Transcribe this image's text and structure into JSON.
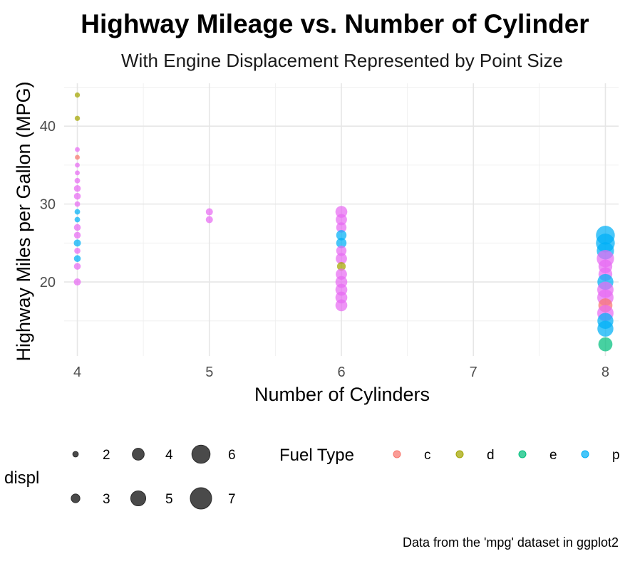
{
  "chart_data": {
    "type": "scatter",
    "title": "Highway Mileage vs. Number of Cylinder",
    "subtitle": "With Engine Displacement Represented by Point Size",
    "xlabel": "Number of Cylinders",
    "ylabel": "Highway Miles per Gallon (MPG)",
    "caption": "Data from the 'mpg' dataset in ggplot2",
    "xlim": [
      3.9,
      8.1
    ],
    "ylim": [
      10.5,
      45.5
    ],
    "x_ticks": [
      4,
      5,
      6,
      7,
      8
    ],
    "y_ticks": [
      20,
      30,
      40
    ],
    "grid": true,
    "colors": {
      "c": "#F8766D",
      "d": "#A3A500",
      "e": "#00BF7D",
      "p": "#00B0F6",
      "r": "#E76BF3"
    },
    "size_legend": {
      "title": "displ",
      "entries": [
        {
          "label": "2",
          "value": 2
        },
        {
          "label": "4",
          "value": 4
        },
        {
          "label": "6",
          "value": 6
        },
        {
          "label": "3",
          "value": 3
        },
        {
          "label": "5",
          "value": 5
        },
        {
          "label": "7",
          "value": 7
        }
      ]
    },
    "color_legend": {
      "title": "Fuel Type",
      "entries": [
        {
          "label": "c",
          "key": "c"
        },
        {
          "label": "d",
          "key": "d"
        },
        {
          "label": "e",
          "key": "e"
        },
        {
          "label": "p",
          "key": "p"
        }
      ]
    },
    "points": [
      {
        "x": 4,
        "y": 44,
        "displ": 1.9,
        "fl": "d"
      },
      {
        "x": 4,
        "y": 41,
        "displ": 1.9,
        "fl": "d"
      },
      {
        "x": 4,
        "y": 37,
        "displ": 1.8,
        "fl": "r"
      },
      {
        "x": 4,
        "y": 36,
        "displ": 1.8,
        "fl": "c"
      },
      {
        "x": 4,
        "y": 35,
        "displ": 1.8,
        "fl": "r"
      },
      {
        "x": 4,
        "y": 34,
        "displ": 1.8,
        "fl": "r"
      },
      {
        "x": 4,
        "y": 33,
        "displ": 2.0,
        "fl": "r"
      },
      {
        "x": 4,
        "y": 32,
        "displ": 2.4,
        "fl": "r"
      },
      {
        "x": 4,
        "y": 31,
        "displ": 2.4,
        "fl": "r"
      },
      {
        "x": 4,
        "y": 30,
        "displ": 2.0,
        "fl": "r"
      },
      {
        "x": 4,
        "y": 29,
        "displ": 2.0,
        "fl": "p"
      },
      {
        "x": 4,
        "y": 28,
        "displ": 2.0,
        "fl": "p"
      },
      {
        "x": 4,
        "y": 27,
        "displ": 2.4,
        "fl": "r"
      },
      {
        "x": 4,
        "y": 26,
        "displ": 2.4,
        "fl": "r"
      },
      {
        "x": 4,
        "y": 25,
        "displ": 2.5,
        "fl": "p"
      },
      {
        "x": 4,
        "y": 24,
        "displ": 2.2,
        "fl": "r"
      },
      {
        "x": 4,
        "y": 23,
        "displ": 2.4,
        "fl": "p"
      },
      {
        "x": 4,
        "y": 22,
        "displ": 2.4,
        "fl": "r"
      },
      {
        "x": 4,
        "y": 20,
        "displ": 2.5,
        "fl": "r"
      },
      {
        "x": 5,
        "y": 29,
        "displ": 2.5,
        "fl": "r"
      },
      {
        "x": 5,
        "y": 28,
        "displ": 2.5,
        "fl": "r"
      },
      {
        "x": 6,
        "y": 29,
        "displ": 4.0,
        "fl": "r"
      },
      {
        "x": 6,
        "y": 28,
        "displ": 3.8,
        "fl": "r"
      },
      {
        "x": 6,
        "y": 27,
        "displ": 3.5,
        "fl": "r"
      },
      {
        "x": 6,
        "y": 26,
        "displ": 3.5,
        "fl": "p"
      },
      {
        "x": 6,
        "y": 25,
        "displ": 3.5,
        "fl": "p"
      },
      {
        "x": 6,
        "y": 24,
        "displ": 3.5,
        "fl": "r"
      },
      {
        "x": 6,
        "y": 23,
        "displ": 3.8,
        "fl": "r"
      },
      {
        "x": 6,
        "y": 22,
        "displ": 3.0,
        "fl": "d"
      },
      {
        "x": 6,
        "y": 21,
        "displ": 3.8,
        "fl": "r"
      },
      {
        "x": 6,
        "y": 20,
        "displ": 4.0,
        "fl": "r"
      },
      {
        "x": 6,
        "y": 19,
        "displ": 4.0,
        "fl": "r"
      },
      {
        "x": 6,
        "y": 18,
        "displ": 4.0,
        "fl": "r"
      },
      {
        "x": 6,
        "y": 17,
        "displ": 4.0,
        "fl": "r"
      },
      {
        "x": 8,
        "y": 26,
        "displ": 6.2,
        "fl": "p"
      },
      {
        "x": 8,
        "y": 25,
        "displ": 6.2,
        "fl": "p"
      },
      {
        "x": 8,
        "y": 24,
        "displ": 5.7,
        "fl": "p"
      },
      {
        "x": 8,
        "y": 23,
        "displ": 5.7,
        "fl": "r"
      },
      {
        "x": 8,
        "y": 22,
        "displ": 4.6,
        "fl": "r"
      },
      {
        "x": 8,
        "y": 21,
        "displ": 4.6,
        "fl": "r"
      },
      {
        "x": 8,
        "y": 20,
        "displ": 5.3,
        "fl": "p"
      },
      {
        "x": 8,
        "y": 19,
        "displ": 5.4,
        "fl": "r"
      },
      {
        "x": 8,
        "y": 18,
        "displ": 5.4,
        "fl": "r"
      },
      {
        "x": 8,
        "y": 17,
        "displ": 4.7,
        "fl": "c"
      },
      {
        "x": 8,
        "y": 16,
        "displ": 5.4,
        "fl": "r"
      },
      {
        "x": 8,
        "y": 15,
        "displ": 5.3,
        "fl": "p"
      },
      {
        "x": 8,
        "y": 14,
        "displ": 5.3,
        "fl": "p"
      },
      {
        "x": 8,
        "y": 12,
        "displ": 4.7,
        "fl": "e"
      }
    ]
  }
}
